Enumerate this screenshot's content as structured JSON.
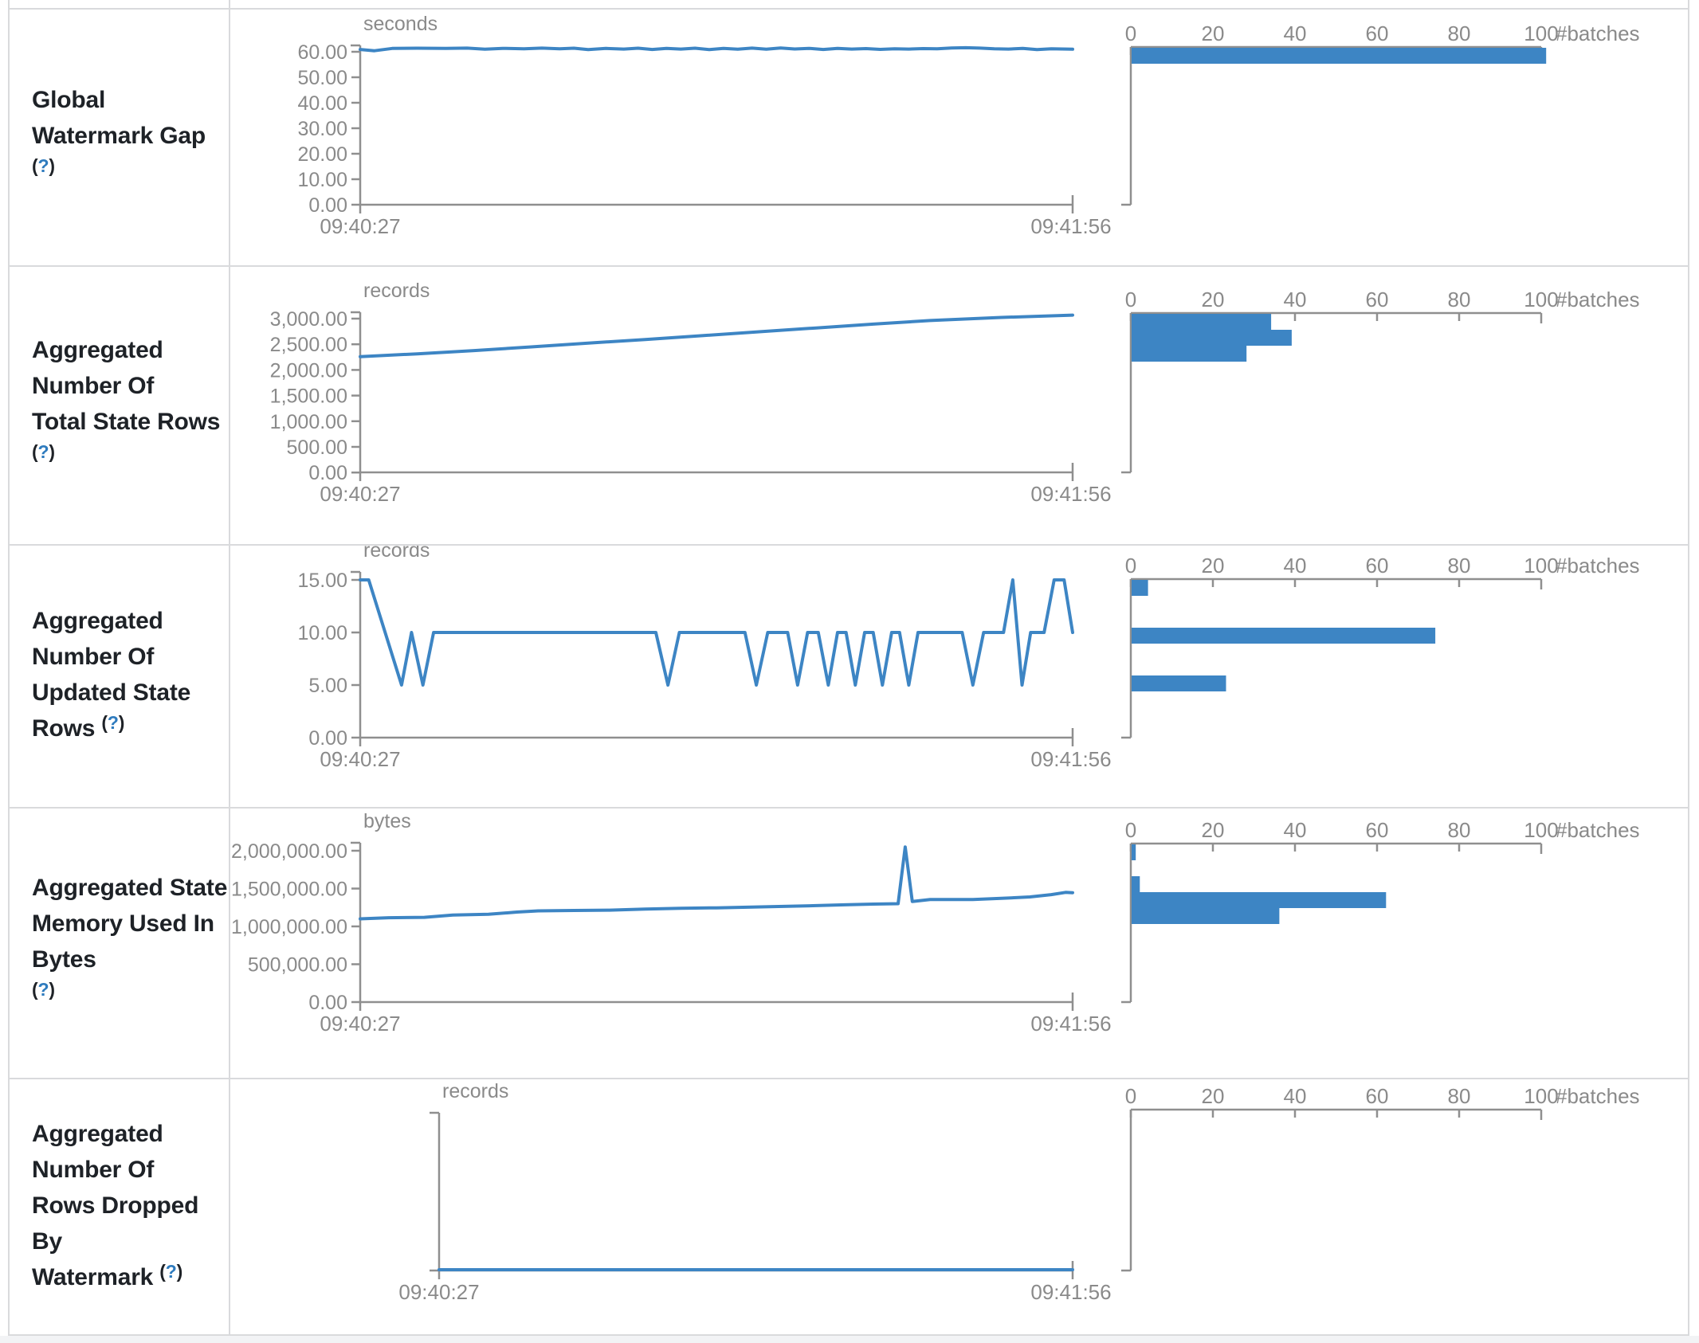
{
  "page": {
    "title": "Streaming Query Statistics"
  },
  "colors": {
    "accent": "#3d85c4",
    "axis": "#8f8f8f",
    "label_gray": "#8a8a8a",
    "title_text": "#1e2227",
    "help_blue": "#2e7bbe",
    "border": "#d9dadc"
  },
  "batch_axis": {
    "tick_labels": [
      "0",
      "20",
      "40",
      "60",
      "80",
      "100"
    ],
    "axis_title": "#batches"
  },
  "time_axis": {
    "start_label": "09:40:27",
    "end_label": "09:41:56"
  },
  "rows": [
    {
      "title_lines": [
        "Global Watermark Gap"
      ],
      "help_label_open": "(",
      "help_label_q": "?",
      "help_label_close": ")",
      "help_inline": false,
      "unit": "seconds",
      "y_tick_labels": [
        "60.00",
        "50.00",
        "40.00",
        "30.00",
        "20.00",
        "10.00",
        "0.00"
      ],
      "y_tick_values": [
        60,
        50,
        40,
        30,
        20,
        10,
        0
      ],
      "timeline_points": [
        [
          0,
          60.9
        ],
        [
          0.02,
          60.4
        ],
        [
          0.045,
          61.3
        ],
        [
          0.08,
          61.4
        ],
        [
          0.12,
          61.3
        ],
        [
          0.15,
          61.45
        ],
        [
          0.175,
          61.0
        ],
        [
          0.2,
          61.35
        ],
        [
          0.23,
          61.2
        ],
        [
          0.255,
          61.45
        ],
        [
          0.28,
          61.15
        ],
        [
          0.3,
          61.4
        ],
        [
          0.32,
          60.85
        ],
        [
          0.345,
          61.3
        ],
        [
          0.37,
          61.05
        ],
        [
          0.39,
          61.4
        ],
        [
          0.41,
          60.9
        ],
        [
          0.43,
          61.3
        ],
        [
          0.45,
          61.05
        ],
        [
          0.47,
          61.4
        ],
        [
          0.49,
          60.85
        ],
        [
          0.51,
          61.3
        ],
        [
          0.53,
          61.0
        ],
        [
          0.55,
          61.45
        ],
        [
          0.57,
          61.0
        ],
        [
          0.59,
          61.5
        ],
        [
          0.61,
          61.1
        ],
        [
          0.63,
          61.35
        ],
        [
          0.65,
          60.9
        ],
        [
          0.67,
          61.3
        ],
        [
          0.69,
          61.05
        ],
        [
          0.71,
          61.25
        ],
        [
          0.73,
          60.95
        ],
        [
          0.75,
          61.15
        ],
        [
          0.77,
          61.05
        ],
        [
          0.79,
          61.25
        ],
        [
          0.81,
          61.2
        ],
        [
          0.83,
          61.5
        ],
        [
          0.85,
          61.6
        ],
        [
          0.87,
          61.45
        ],
        [
          0.89,
          61.2
        ],
        [
          0.91,
          61.05
        ],
        [
          0.93,
          61.35
        ],
        [
          0.95,
          60.85
        ],
        [
          0.97,
          61.2
        ],
        [
          1,
          61.0
        ]
      ],
      "histogram_bars": [
        {
          "slot": 0,
          "count": 101
        }
      ]
    },
    {
      "title_lines": [
        "Aggregated Number Of",
        "Total State Rows"
      ],
      "help_label_open": "(",
      "help_label_q": "?",
      "help_label_close": ")",
      "help_inline": true,
      "unit": "records",
      "y_tick_labels": [
        "3,000.00",
        "2,500.00",
        "2,000.00",
        "1,500.00",
        "1,000.00",
        "500.00",
        "0.00"
      ],
      "y_tick_values": [
        3000,
        2500,
        2000,
        1500,
        1000,
        500,
        0
      ],
      "timeline_points": [
        [
          0,
          2255
        ],
        [
          0.08,
          2310
        ],
        [
          0.16,
          2375
        ],
        [
          0.24,
          2445
        ],
        [
          0.32,
          2520
        ],
        [
          0.4,
          2590
        ],
        [
          0.48,
          2665
        ],
        [
          0.56,
          2740
        ],
        [
          0.64,
          2815
        ],
        [
          0.72,
          2890
        ],
        [
          0.8,
          2960
        ],
        [
          0.9,
          3020
        ],
        [
          1,
          3065
        ]
      ],
      "histogram_bars": [
        {
          "slot": 0,
          "count": 34
        },
        {
          "slot": 1,
          "count": 39
        },
        {
          "slot": 2,
          "count": 28
        }
      ]
    },
    {
      "title_lines": [
        "Aggregated Number Of",
        "Updated State Rows"
      ],
      "help_label_open": "(",
      "help_label_q": "?",
      "help_label_close": ")",
      "help_inline": true,
      "unit": "records",
      "y_tick_labels": [
        "15.00",
        "10.00",
        "5.00",
        "0.00"
      ],
      "y_tick_values": [
        15,
        10,
        5,
        0
      ],
      "timeline_points": [
        [
          0,
          15
        ],
        [
          0.012,
          15
        ],
        [
          0.058,
          5
        ],
        [
          0.072,
          10
        ],
        [
          0.088,
          5
        ],
        [
          0.103,
          10
        ],
        [
          0.415,
          10
        ],
        [
          0.432,
          5
        ],
        [
          0.448,
          10
        ],
        [
          0.54,
          10
        ],
        [
          0.556,
          5
        ],
        [
          0.572,
          10
        ],
        [
          0.6,
          10
        ],
        [
          0.614,
          5
        ],
        [
          0.628,
          10
        ],
        [
          0.643,
          10
        ],
        [
          0.657,
          5
        ],
        [
          0.67,
          10
        ],
        [
          0.682,
          10
        ],
        [
          0.695,
          5
        ],
        [
          0.708,
          10
        ],
        [
          0.72,
          10
        ],
        [
          0.733,
          5
        ],
        [
          0.746,
          10
        ],
        [
          0.757,
          10
        ],
        [
          0.77,
          5
        ],
        [
          0.783,
          10
        ],
        [
          0.845,
          10
        ],
        [
          0.86,
          5
        ],
        [
          0.875,
          10
        ],
        [
          0.903,
          10
        ],
        [
          0.916,
          15
        ],
        [
          0.929,
          5
        ],
        [
          0.941,
          10
        ],
        [
          0.96,
          10
        ],
        [
          0.974,
          15
        ],
        [
          0.988,
          15
        ],
        [
          1,
          10
        ]
      ],
      "histogram_bars": [
        {
          "slot": 0,
          "count": 4
        },
        {
          "slot": 3,
          "count": 74
        },
        {
          "slot": 6,
          "count": 23
        }
      ]
    },
    {
      "title_lines": [
        "Aggregated State",
        "Memory Used In Bytes"
      ],
      "help_label_open": "(",
      "help_label_q": "?",
      "help_label_close": ")",
      "help_inline": false,
      "unit": "bytes",
      "y_tick_labels": [
        "2,000,000.00",
        "1,500,000.00",
        "1,000,000.00",
        "500,000.00",
        "0.00"
      ],
      "y_tick_values": [
        2000000,
        1500000,
        1000000,
        500000,
        0
      ],
      "timeline_points": [
        [
          0,
          1100000
        ],
        [
          0.04,
          1115000
        ],
        [
          0.09,
          1120000
        ],
        [
          0.13,
          1150000
        ],
        [
          0.18,
          1160000
        ],
        [
          0.22,
          1190000
        ],
        [
          0.25,
          1205000
        ],
        [
          0.3,
          1210000
        ],
        [
          0.35,
          1215000
        ],
        [
          0.4,
          1230000
        ],
        [
          0.45,
          1240000
        ],
        [
          0.5,
          1245000
        ],
        [
          0.55,
          1255000
        ],
        [
          0.6,
          1265000
        ],
        [
          0.64,
          1275000
        ],
        [
          0.68,
          1285000
        ],
        [
          0.72,
          1295000
        ],
        [
          0.755,
          1300000
        ],
        [
          0.765,
          2050000
        ],
        [
          0.775,
          1330000
        ],
        [
          0.8,
          1355000
        ],
        [
          0.86,
          1355000
        ],
        [
          0.9,
          1370000
        ],
        [
          0.94,
          1390000
        ],
        [
          0.97,
          1420000
        ],
        [
          0.99,
          1450000
        ],
        [
          1,
          1445000
        ]
      ],
      "histogram_bars": [
        {
          "slot": 0,
          "count": 1
        },
        {
          "slot": 2,
          "count": 2
        },
        {
          "slot": 3,
          "count": 62
        },
        {
          "slot": 4,
          "count": 36
        }
      ]
    },
    {
      "title_lines": [
        "Aggregated Number Of",
        "Rows Dropped By",
        "Watermark"
      ],
      "help_label_open": "(",
      "help_label_q": "?",
      "help_label_close": ")",
      "help_inline": true,
      "unit": "records",
      "y_tick_labels": [],
      "y_tick_values": [],
      "timeline_points": [
        [
          0,
          0
        ],
        [
          1,
          0
        ]
      ],
      "histogram_bars": []
    }
  ]
}
